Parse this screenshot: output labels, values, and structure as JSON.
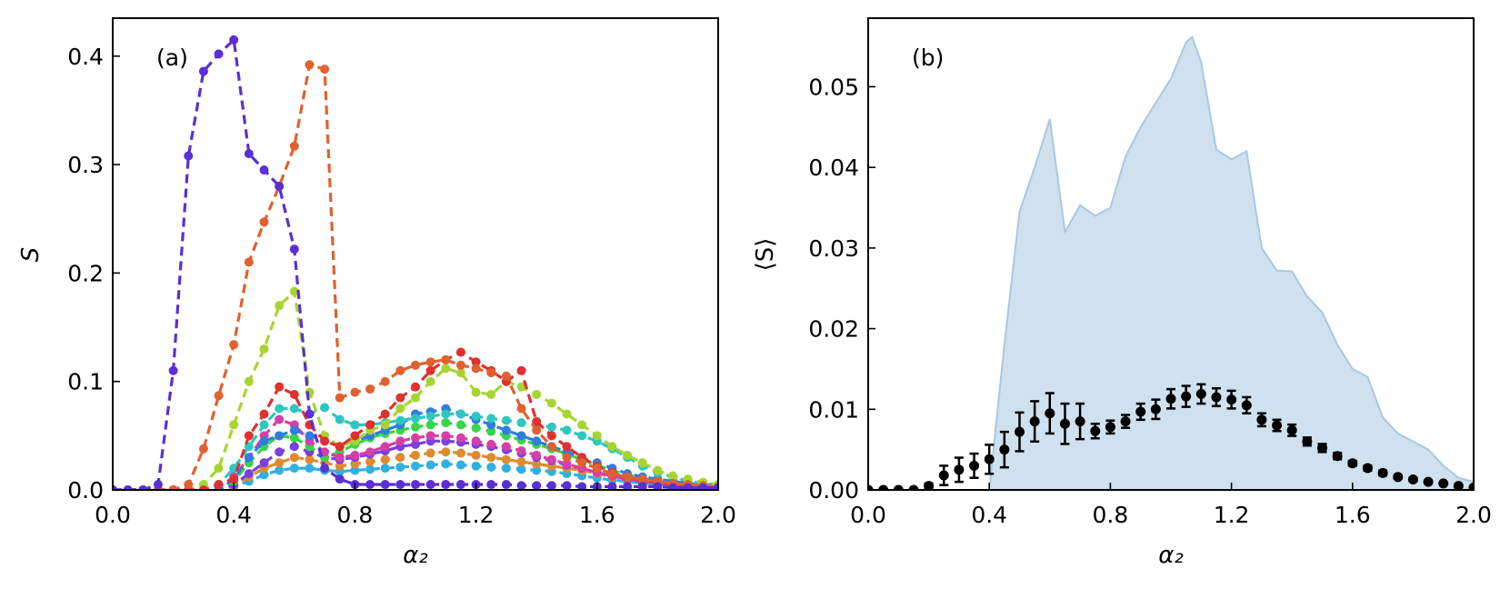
{
  "chart_data": [
    {
      "panel": "(a)",
      "type": "line",
      "xlabel": "α₂",
      "ylabel": "S",
      "xlim": [
        0.0,
        2.0
      ],
      "ylim": [
        0.0,
        0.435
      ],
      "xticks": [
        "0.0",
        "0.4",
        "0.8",
        "1.2",
        "1.6",
        "2.0"
      ],
      "yticks": [
        "0.0",
        "0.1",
        "0.2",
        "0.3",
        "0.4"
      ],
      "line_style": "dashed with circle markers",
      "x": [
        0.0,
        0.05,
        0.1,
        0.15,
        0.2,
        0.25,
        0.3,
        0.35,
        0.4,
        0.45,
        0.5,
        0.55,
        0.6,
        0.65,
        0.7,
        0.75,
        0.8,
        0.85,
        0.9,
        0.95,
        1.0,
        1.05,
        1.1,
        1.15,
        1.2,
        1.25,
        1.3,
        1.35,
        1.4,
        1.45,
        1.5,
        1.55,
        1.6,
        1.65,
        1.7,
        1.75,
        1.8,
        1.85,
        1.9,
        1.95,
        2.0
      ],
      "series": [
        {
          "color": "#5b2fd6",
          "values": [
            0,
            0,
            0,
            0.005,
            0.11,
            0.308,
            0.386,
            0.402,
            0.415,
            0.31,
            0.295,
            0.28,
            0.222,
            0.07,
            0.02,
            0.01,
            0.005,
            0.005,
            0.005,
            0.005,
            0.005,
            0.005,
            0.005,
            0.005,
            0.005,
            0.005,
            0.005,
            0.004,
            0.004,
            0.004,
            0.004,
            0.003,
            0.003,
            0.003,
            0.003,
            0.003,
            0.003,
            0.002,
            0.002,
            0.002,
            0.002
          ]
        },
        {
          "color": "#e0612f",
          "values": [
            0,
            0,
            0,
            0,
            0,
            0.005,
            0.038,
            0.087,
            0.134,
            0.21,
            0.247,
            0.28,
            0.317,
            0.392,
            0.388,
            0.085,
            0.09,
            0.093,
            0.1,
            0.11,
            0.115,
            0.118,
            0.12,
            0.115,
            0.112,
            0.108,
            0.105,
            0.075,
            0.055,
            0.04,
            0.03,
            0.025,
            0.02,
            0.015,
            0.012,
            0.01,
            0.008,
            0.006,
            0.005,
            0.004,
            0.003
          ]
        },
        {
          "color": "#e0302f",
          "values": [
            0,
            0,
            0,
            0,
            0,
            0,
            0,
            0.005,
            0.01,
            0.05,
            0.07,
            0.095,
            0.088,
            0.06,
            0.045,
            0.04,
            0.05,
            0.06,
            0.07,
            0.085,
            0.095,
            0.11,
            0.12,
            0.127,
            0.118,
            0.11,
            0.1,
            0.11,
            0.063,
            0.05,
            0.04,
            0.03,
            0.022,
            0.016,
            0.012,
            0.009,
            0.007,
            0.005,
            0.004,
            0.003,
            0.002
          ]
        },
        {
          "color": "#a8d431",
          "values": [
            0,
            0,
            0,
            0,
            0,
            0,
            0.005,
            0.02,
            0.06,
            0.1,
            0.13,
            0.17,
            0.183,
            0.09,
            0.05,
            0.04,
            0.045,
            0.055,
            0.06,
            0.075,
            0.085,
            0.1,
            0.112,
            0.108,
            0.09,
            0.088,
            0.1,
            0.095,
            0.088,
            0.08,
            0.07,
            0.06,
            0.05,
            0.04,
            0.032,
            0.025,
            0.018,
            0.013,
            0.01,
            0.007,
            0.005
          ]
        },
        {
          "color": "#2ec7c0",
          "values": [
            0,
            0,
            0,
            0,
            0,
            0,
            0,
            0.005,
            0.02,
            0.04,
            0.06,
            0.075,
            0.075,
            0.07,
            0.076,
            0.065,
            0.06,
            0.06,
            0.062,
            0.064,
            0.066,
            0.068,
            0.07,
            0.07,
            0.068,
            0.066,
            0.064,
            0.062,
            0.06,
            0.058,
            0.055,
            0.05,
            0.045,
            0.038,
            0.03,
            0.022,
            0.016,
            0.012,
            0.008,
            0.006,
            0.005
          ]
        },
        {
          "color": "#2f7de0",
          "values": [
            0,
            0,
            0,
            0,
            0,
            0,
            0,
            0,
            0.01,
            0.03,
            0.045,
            0.05,
            0.055,
            0.05,
            0.045,
            0.04,
            0.045,
            0.05,
            0.055,
            0.06,
            0.07,
            0.072,
            0.075,
            0.07,
            0.065,
            0.06,
            0.055,
            0.05,
            0.045,
            0.04,
            0.035,
            0.03,
            0.025,
            0.02,
            0.015,
            0.012,
            0.01,
            0.008,
            0.006,
            0.005,
            0.004
          ]
        },
        {
          "color": "#d63fa8",
          "values": [
            0,
            0,
            0,
            0,
            0,
            0,
            0,
            0.003,
            0.012,
            0.03,
            0.05,
            0.065,
            0.06,
            0.045,
            0.035,
            0.03,
            0.032,
            0.035,
            0.04,
            0.045,
            0.048,
            0.05,
            0.05,
            0.048,
            0.045,
            0.042,
            0.04,
            0.036,
            0.032,
            0.028,
            0.024,
            0.02,
            0.016,
            0.013,
            0.01,
            0.008,
            0.006,
            0.005,
            0.004,
            0.003,
            0.002
          ]
        },
        {
          "color": "#39d44a",
          "values": [
            0,
            0,
            0,
            0,
            0,
            0,
            0,
            0,
            0.008,
            0.025,
            0.04,
            0.05,
            0.048,
            0.04,
            0.03,
            0.035,
            0.042,
            0.048,
            0.052,
            0.055,
            0.058,
            0.06,
            0.062,
            0.06,
            0.057,
            0.054,
            0.05,
            0.046,
            0.042,
            0.038,
            0.033,
            0.028,
            0.023,
            0.018,
            0.014,
            0.011,
            0.008,
            0.006,
            0.005,
            0.004,
            0.003
          ]
        },
        {
          "color": "#7a3fe0",
          "values": [
            0,
            0,
            0,
            0,
            0,
            0,
            0,
            0,
            0.005,
            0.015,
            0.025,
            0.035,
            0.04,
            0.035,
            0.03,
            0.028,
            0.03,
            0.033,
            0.036,
            0.04,
            0.042,
            0.045,
            0.045,
            0.044,
            0.042,
            0.04,
            0.037,
            0.034,
            0.03,
            0.027,
            0.023,
            0.02,
            0.016,
            0.013,
            0.01,
            0.008,
            0.006,
            0.005,
            0.004,
            0.003,
            0.002
          ]
        },
        {
          "color": "#e08a2f",
          "values": [
            0,
            0,
            0,
            0,
            0,
            0,
            0,
            0,
            0.004,
            0.012,
            0.02,
            0.025,
            0.03,
            0.028,
            0.025,
            0.022,
            0.024,
            0.026,
            0.028,
            0.03,
            0.032,
            0.034,
            0.035,
            0.034,
            0.032,
            0.03,
            0.028,
            0.026,
            0.024,
            0.022,
            0.02,
            0.018,
            0.015,
            0.012,
            0.01,
            0.008,
            0.006,
            0.005,
            0.004,
            0.003,
            0.002
          ]
        },
        {
          "color": "#2fb0e0",
          "values": [
            0,
            0,
            0,
            0,
            0,
            0,
            0,
            0,
            0.003,
            0.008,
            0.014,
            0.018,
            0.02,
            0.02,
            0.018,
            0.017,
            0.018,
            0.019,
            0.02,
            0.021,
            0.022,
            0.023,
            0.024,
            0.023,
            0.022,
            0.021,
            0.02,
            0.019,
            0.018,
            0.017,
            0.015,
            0.013,
            0.011,
            0.009,
            0.008,
            0.006,
            0.005,
            0.004,
            0.003,
            0.003,
            0.002
          ]
        }
      ]
    },
    {
      "panel": "(b)",
      "type": "scatter",
      "xlabel": "α₂",
      "ylabel": "⟨S⟩",
      "xlim": [
        0.0,
        2.0
      ],
      "ylim": [
        0.0,
        0.0585
      ],
      "xticks": [
        "0.0",
        "0.4",
        "0.8",
        "1.2",
        "1.6",
        "2.0"
      ],
      "yticks": [
        "0.00",
        "0.01",
        "0.02",
        "0.03",
        "0.04",
        "0.05"
      ],
      "band": {
        "color": "#cfe0ee",
        "edge_color": "#a9c8e2",
        "x": [
          0.0,
          0.05,
          0.1,
          0.15,
          0.2,
          0.25,
          0.3,
          0.35,
          0.4,
          0.45,
          0.5,
          0.55,
          0.6,
          0.65,
          0.7,
          0.75,
          0.8,
          0.85,
          0.9,
          0.95,
          1.0,
          1.05,
          1.07,
          1.1,
          1.15,
          1.2,
          1.25,
          1.3,
          1.35,
          1.4,
          1.45,
          1.5,
          1.55,
          1.6,
          1.65,
          1.7,
          1.75,
          1.8,
          1.85,
          1.9,
          1.95,
          2.0
        ],
        "upper": [
          0.0,
          0.0,
          0.0,
          0.0,
          0.0,
          0.0,
          0.0,
          0.0,
          0.0,
          0.018,
          0.0345,
          0.04,
          0.046,
          0.032,
          0.0353,
          0.034,
          0.035,
          0.0413,
          0.045,
          0.048,
          0.051,
          0.0555,
          0.0562,
          0.053,
          0.0422,
          0.041,
          0.042,
          0.03,
          0.0272,
          0.0271,
          0.024,
          0.022,
          0.018,
          0.015,
          0.014,
          0.009,
          0.007,
          0.006,
          0.005,
          0.003,
          0.0015,
          0.001
        ]
      },
      "points": {
        "x": [
          0.0,
          0.05,
          0.1,
          0.15,
          0.2,
          0.25,
          0.3,
          0.35,
          0.4,
          0.45,
          0.5,
          0.55,
          0.6,
          0.65,
          0.7,
          0.75,
          0.8,
          0.85,
          0.9,
          0.95,
          1.0,
          1.05,
          1.1,
          1.15,
          1.2,
          1.25,
          1.3,
          1.35,
          1.4,
          1.45,
          1.5,
          1.55,
          1.6,
          1.65,
          1.7,
          1.75,
          1.8,
          1.85,
          1.9,
          1.95,
          2.0
        ],
        "y": [
          0.0,
          0.0,
          0.0,
          0.0,
          0.0005,
          0.0018,
          0.0025,
          0.003,
          0.0038,
          0.005,
          0.0072,
          0.0085,
          0.0095,
          0.0082,
          0.0085,
          0.0073,
          0.0078,
          0.0085,
          0.0097,
          0.01,
          0.0113,
          0.0116,
          0.0119,
          0.0115,
          0.0112,
          0.0105,
          0.0087,
          0.008,
          0.0074,
          0.006,
          0.0052,
          0.0042,
          0.0033,
          0.0027,
          0.0021,
          0.0016,
          0.0013,
          0.001,
          0.0008,
          0.0005,
          0.0003
        ],
        "err": [
          0.0,
          0.0,
          0.0,
          0.0,
          0.0003,
          0.0012,
          0.0015,
          0.0015,
          0.0018,
          0.0022,
          0.0024,
          0.0025,
          0.0025,
          0.0025,
          0.0022,
          0.0009,
          0.0008,
          0.0008,
          0.001,
          0.0012,
          0.0012,
          0.0013,
          0.0012,
          0.0011,
          0.0011,
          0.001,
          0.0008,
          0.0007,
          0.0007,
          0.0005,
          0.0005,
          0.0004,
          0.0003,
          0.0003,
          0.0003,
          0.0002,
          0.0002,
          0.0001,
          0.0001,
          0.0001,
          0.0001
        ],
        "color": "#000000"
      }
    }
  ]
}
